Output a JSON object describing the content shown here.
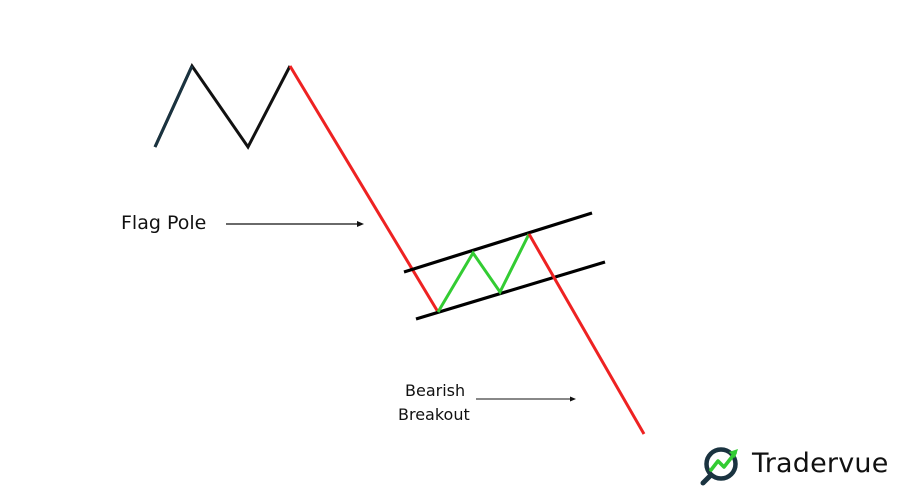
{
  "labels": {
    "flag_pole": "Flag Pole",
    "bearish_line1": "Bearish",
    "bearish_line2": "Breakout"
  },
  "brand": {
    "name": "Tradervue",
    "icon": "magnifier-trend-icon"
  },
  "colors": {
    "prior_trend": "#111111",
    "pole": "#ee2222",
    "flag": "#33cc33",
    "channel": "#000000",
    "breakout": "#ee2222",
    "brand_ring": "#1a3340",
    "brand_arrow": "#33cc33"
  }
}
